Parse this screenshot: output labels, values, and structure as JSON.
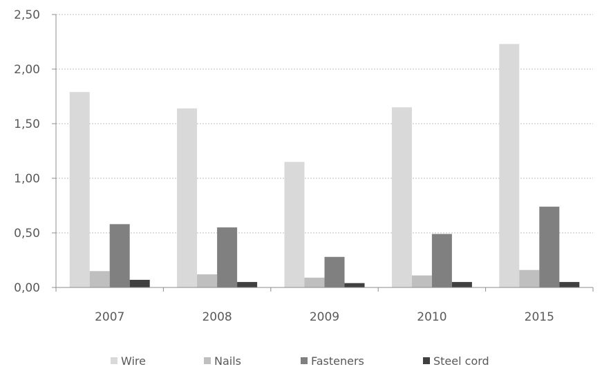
{
  "chart_data": {
    "type": "bar",
    "title": "",
    "xlabel": "",
    "ylabel": "",
    "categories": [
      "2007",
      "2008",
      "2009",
      "2010",
      "2015"
    ],
    "y_ticks": [
      "0,00",
      "0,50",
      "1,00",
      "1,50",
      "2,00",
      "2,50"
    ],
    "y_tick_values": [
      0,
      0.5,
      1.0,
      1.5,
      2.0,
      2.5
    ],
    "ylim": [
      0,
      2.5
    ],
    "grid": "horizontal dashed",
    "legend_position": "bottom",
    "series": [
      {
        "name": "Wire",
        "color": "#d9d9d9",
        "values": [
          1.79,
          1.64,
          1.15,
          1.65,
          2.23
        ]
      },
      {
        "name": "Nails",
        "color": "#bfbfbf",
        "values": [
          0.15,
          0.12,
          0.09,
          0.11,
          0.16
        ]
      },
      {
        "name": "Fasteners",
        "color": "#808080",
        "values": [
          0.58,
          0.55,
          0.28,
          0.49,
          0.74
        ]
      },
      {
        "name": "Steel cord",
        "color": "#404040",
        "values": [
          0.07,
          0.05,
          0.04,
          0.05,
          0.05
        ]
      }
    ]
  }
}
